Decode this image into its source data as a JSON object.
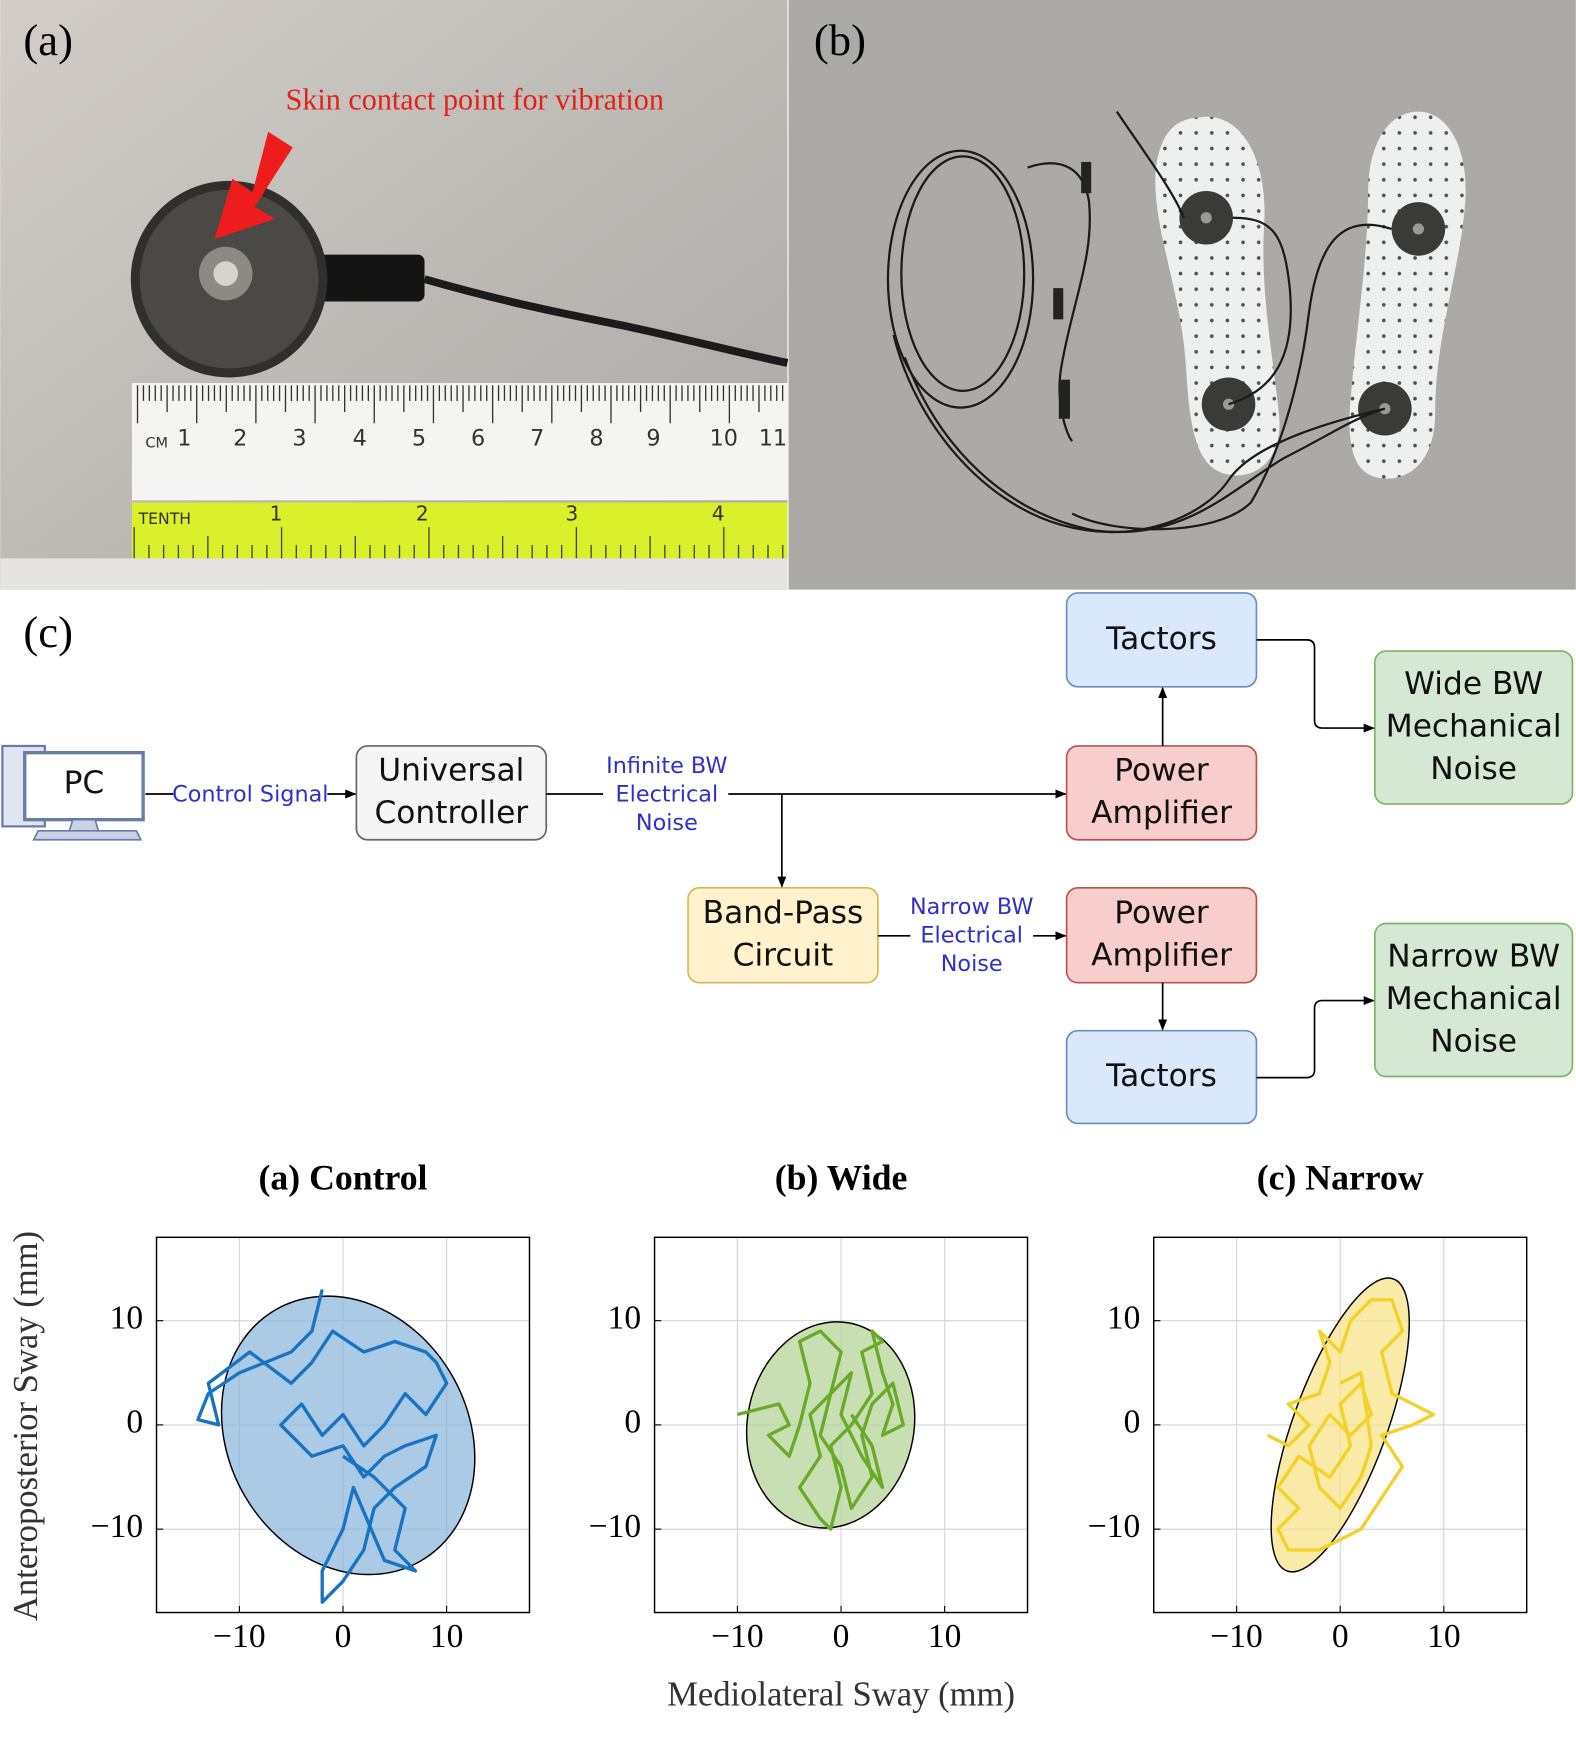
{
  "panel_labels": [
    "(a)",
    "(b)",
    "(c)"
  ],
  "photo_a": {
    "annotation": "Skin contact point for vibration",
    "ruler_cm_unit": "CM",
    "ruler_cm_labels": [
      "1",
      "2",
      "3",
      "4",
      "5",
      "6",
      "7",
      "8",
      "9",
      "10",
      "11"
    ],
    "ruler_tenth_unit": "TENTH",
    "ruler_tenth_labels": [
      "1",
      "2",
      "3",
      "4"
    ]
  },
  "diagram": {
    "nodes": [
      {
        "lines": [
          "PC"
        ]
      },
      {
        "lines": [
          "Universal",
          "Controller"
        ]
      },
      {
        "lines": [
          "Power",
          "Amplifier"
        ]
      },
      {
        "lines": [
          "Tactors"
        ]
      },
      {
        "lines": [
          "Wide BW",
          "Mechanical",
          "Noise"
        ]
      },
      {
        "lines": [
          "Band-Pass",
          "Circuit"
        ]
      },
      {
        "lines": [
          "Power",
          "Amplifier"
        ]
      },
      {
        "lines": [
          "Tactors"
        ]
      },
      {
        "lines": [
          "Narrow BW",
          "Mechanical",
          "Noise"
        ]
      }
    ],
    "edge_labels": [
      {
        "lines": [
          "Control Signal"
        ]
      },
      {
        "lines": [
          "Infinite BW",
          "Electrical",
          "Noise"
        ]
      },
      {
        "lines": [
          "Narrow BW",
          "Electrical",
          "Noise"
        ]
      }
    ]
  },
  "sway_figure": {
    "y_label": "Anteroposterior Sway (mm)",
    "x_label": "Mediolateral Sway (mm)"
  },
  "chart_data": [
    {
      "type": "line",
      "title": "(a) Control",
      "xlim": [
        -18,
        18
      ],
      "ylim": [
        -18,
        18
      ],
      "xticks": [
        {
          "value": -10,
          "label": "−10"
        },
        0,
        10
      ],
      "yticks": [
        {
          "value": -10,
          "label": "−10"
        },
        0,
        10
      ],
      "grid": true,
      "ellipse": {
        "cx": 0.5,
        "cy": -1,
        "a": 14,
        "b": 11.5,
        "angle": -60,
        "fill": "#8fb8dc"
      },
      "series": [
        {
          "color": "#1a73c0",
          "x": [
            -2,
            -3,
            -5,
            -10,
            -13,
            -14,
            -12,
            -13,
            -9,
            -5,
            -3,
            -1,
            2,
            5,
            8,
            9,
            10,
            8,
            6,
            4,
            2,
            0,
            -2,
            -4,
            -6,
            -3,
            0,
            2,
            4,
            6,
            9,
            8,
            5,
            3,
            2,
            0,
            -2,
            -2,
            0,
            1,
            4,
            7,
            5,
            6,
            3,
            0
          ],
          "y": [
            13,
            9,
            7,
            5,
            3,
            0.5,
            0,
            4,
            7,
            4,
            6,
            9,
            7,
            8,
            7,
            6,
            4,
            1,
            3,
            0,
            -2,
            1,
            -1,
            2,
            0,
            -3,
            -2,
            -5,
            -3,
            -2,
            -1,
            -4,
            -6,
            -8,
            -12,
            -15,
            -17,
            -14,
            -10,
            -6,
            -13,
            -14,
            -12,
            -8,
            -5,
            -3
          ]
        }
      ]
    },
    {
      "type": "line",
      "title": "(b) Wide",
      "xlim": [
        -18,
        18
      ],
      "ylim": [
        -18,
        18
      ],
      "xticks": [
        {
          "value": -10,
          "label": "−10"
        },
        0,
        10
      ],
      "yticks": [
        {
          "value": -10,
          "label": "−10"
        },
        0,
        10
      ],
      "grid": true,
      "ellipse": {
        "cx": -1,
        "cy": 0,
        "a": 10,
        "b": 8,
        "angle": 80,
        "fill": "#b6d49a"
      },
      "series": [
        {
          "color": "#6aaa2a",
          "x": [
            -10,
            -8,
            -6,
            -5,
            -7,
            -5,
            -4,
            -3,
            -4,
            -2,
            0,
            -1,
            -3,
            -2,
            -4,
            -2,
            -1,
            0,
            -1,
            1,
            3,
            2,
            4,
            3,
            4,
            5,
            4,
            6,
            5,
            3,
            2,
            3,
            1,
            0,
            -2,
            -1,
            1,
            0,
            2,
            4,
            3,
            1
          ],
          "y": [
            1,
            1.5,
            2,
            0,
            -1,
            -3,
            0,
            4,
            8,
            9,
            7,
            3,
            1,
            -3,
            -6,
            -9,
            -10,
            -6,
            -2,
            0,
            3,
            7,
            8,
            9,
            5,
            2,
            -1,
            0,
            4,
            2,
            -1,
            -5,
            -8,
            -4,
            -1,
            3,
            5,
            1,
            -3,
            -6,
            -2,
            1
          ]
        }
      ]
    },
    {
      "type": "line",
      "title": "(c) Narrow",
      "xlim": [
        -18,
        18
      ],
      "ylim": [
        -18,
        18
      ],
      "xticks": [
        {
          "value": -10,
          "label": "−10"
        },
        0,
        10
      ],
      "yticks": [
        {
          "value": -10,
          "label": "−10"
        },
        0,
        10
      ],
      "grid": true,
      "ellipse": {
        "cx": 0,
        "cy": 0,
        "a": 15,
        "b": 4.5,
        "angle": 70,
        "fill": "#f7e48a"
      },
      "series": [
        {
          "color": "#f2d22a",
          "x": [
            -7,
            -5,
            -3,
            -5,
            -2,
            -1,
            -2,
            0,
            1,
            3,
            5,
            6,
            4,
            5,
            7,
            9,
            7,
            4,
            6,
            4,
            2,
            0,
            -2,
            -5,
            -6,
            -4,
            -6,
            -4,
            -1,
            1,
            0,
            2,
            3,
            1,
            -1,
            -3,
            -2,
            0,
            2,
            3,
            2,
            0
          ],
          "y": [
            -1,
            -2,
            0,
            2,
            3,
            6,
            9,
            7,
            10,
            12,
            12,
            9,
            7,
            3,
            2,
            1,
            0,
            -1,
            -4,
            -7,
            -10,
            -11,
            -12,
            -12,
            -10,
            -8,
            -6,
            -3,
            -5,
            -2,
            2,
            4,
            1,
            -1,
            1,
            -2,
            -6,
            -8,
            -5,
            -2,
            5,
            4
          ]
        }
      ]
    }
  ]
}
